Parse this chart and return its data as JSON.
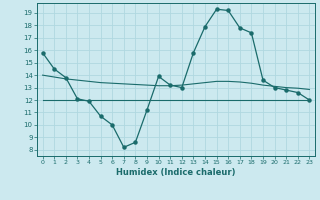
{
  "xlabel": "Humidex (Indice chaleur)",
  "bg_color": "#cce9ef",
  "grid_color": "#b0d8e0",
  "line_color": "#1a6b6b",
  "x_ticks": [
    0,
    1,
    2,
    3,
    4,
    5,
    6,
    7,
    8,
    9,
    10,
    11,
    12,
    13,
    14,
    15,
    16,
    17,
    18,
    19,
    20,
    21,
    22,
    23
  ],
  "y_ticks": [
    8,
    9,
    10,
    11,
    12,
    13,
    14,
    15,
    16,
    17,
    18,
    19
  ],
  "ylim": [
    7.5,
    19.8
  ],
  "xlim": [
    -0.5,
    23.5
  ],
  "series1_x": [
    0,
    1,
    2,
    3,
    4,
    5,
    6,
    7,
    8,
    9,
    10,
    11,
    12,
    13,
    14,
    15,
    16,
    17,
    18,
    19,
    20,
    21,
    22,
    23
  ],
  "series1_y": [
    15.8,
    14.5,
    13.8,
    12.1,
    11.9,
    10.7,
    10.0,
    8.2,
    8.6,
    11.2,
    13.9,
    13.2,
    13.0,
    15.8,
    17.9,
    19.3,
    19.2,
    17.8,
    17.4,
    13.6,
    13.0,
    12.8,
    12.6,
    12.0
  ],
  "series2_x": [
    0,
    1,
    2,
    3,
    4,
    5,
    6,
    7,
    8,
    9,
    10,
    11,
    12,
    13,
    14,
    15,
    16,
    17,
    18,
    19,
    20,
    21,
    22,
    23
  ],
  "series2_y": [
    14.0,
    13.85,
    13.7,
    13.6,
    13.5,
    13.4,
    13.35,
    13.3,
    13.25,
    13.2,
    13.15,
    13.15,
    13.2,
    13.3,
    13.4,
    13.5,
    13.5,
    13.45,
    13.35,
    13.2,
    13.1,
    13.0,
    12.95,
    12.85
  ],
  "series3_x": [
    0,
    1,
    2,
    3,
    4,
    5,
    6,
    7,
    8,
    9,
    10,
    11,
    12,
    13,
    14,
    15,
    16,
    17,
    18,
    19,
    20,
    21,
    22,
    23
  ],
  "series3_y": [
    12.0,
    12.0,
    12.0,
    12.0,
    12.0,
    12.0,
    12.0,
    12.0,
    12.0,
    12.0,
    12.0,
    12.0,
    12.0,
    12.0,
    12.0,
    12.0,
    12.0,
    12.0,
    12.0,
    12.0,
    12.0,
    12.0,
    12.0,
    12.0
  ]
}
